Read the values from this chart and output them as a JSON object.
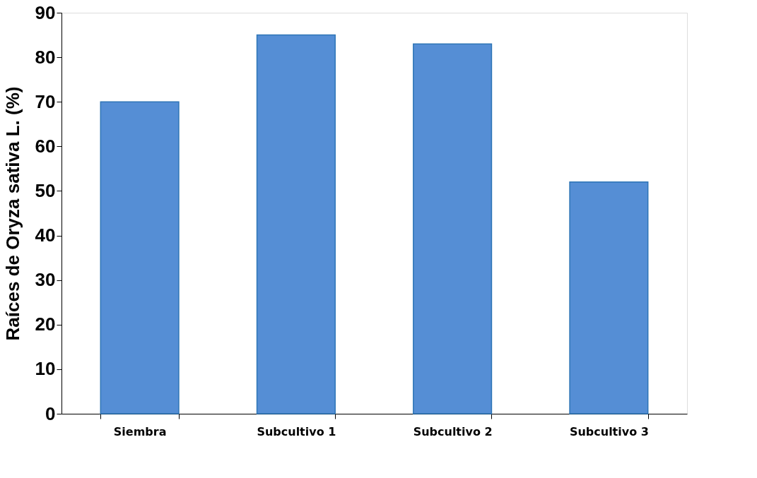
{
  "chart_data": {
    "type": "bar",
    "ylabel": "Raíces de Oryza sativa L. (%)",
    "categories": [
      "Siembra",
      "Subcultivo 1",
      "Subcultivo 2",
      "Subcultivo 3"
    ],
    "values": [
      70,
      85,
      83,
      52
    ],
    "color": "#558ed5",
    "ylim": [
      0,
      90
    ],
    "yticks": [
      0,
      10,
      20,
      30,
      40,
      50,
      60,
      70,
      80,
      90
    ],
    "grid": false
  }
}
